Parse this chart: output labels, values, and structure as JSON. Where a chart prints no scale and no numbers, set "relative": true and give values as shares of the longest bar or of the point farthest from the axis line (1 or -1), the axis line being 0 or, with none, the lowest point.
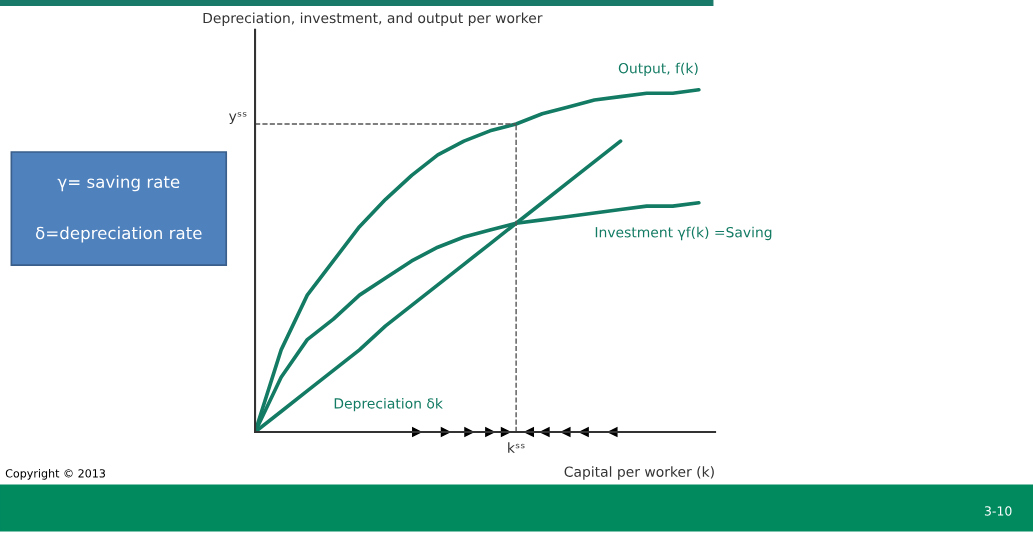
{
  "chart_data": {
    "type": "line",
    "ylabel": "Depreciation, investment, and output per worker",
    "xlabel": "Capital per worker (k)",
    "categories": [
      null,
      null,
      null,
      null,
      null,
      null,
      null,
      null,
      null,
      null,
      null,
      null,
      null,
      null,
      null,
      null,
      null,
      null
    ],
    "relative": true,
    "series": [
      {
        "name": "Output, f(k)",
        "color": "#137b63",
        "values": [
          0,
          0.24,
          0.4,
          0.5,
          0.6,
          0.68,
          0.75,
          0.81,
          0.85,
          0.88,
          0.9,
          0.93,
          0.95,
          0.97,
          0.98,
          0.99,
          0.99,
          1.0
        ]
      },
      {
        "name": "Investment γf(k) =Saving",
        "color": "#137b63",
        "values": [
          0,
          0.16,
          0.27,
          0.33,
          0.4,
          0.45,
          0.5,
          0.54,
          0.57,
          0.59,
          0.61,
          0.62,
          0.63,
          0.64,
          0.65,
          0.66,
          0.66,
          0.67
        ]
      },
      {
        "name": "Depreciation δk",
        "color": "#137b63",
        "values": [
          0,
          0.06,
          0.12,
          0.18,
          0.24,
          0.31,
          0.37,
          0.43,
          0.49,
          0.55,
          0.61,
          0.67,
          0.73,
          0.79,
          0.85,
          null,
          null,
          null
        ]
      }
    ],
    "ref_lines": [
      {
        "axis": "y",
        "value": 0.9,
        "label": "yˢˢ",
        "line_style": "dashed",
        "color": "#555555"
      }
    ],
    "annotations": [
      "γ= saving rate",
      "δ=depreciation rate",
      "Copyright © 2013",
      "3-10",
      "kˢˢ"
    ],
    "marker": "none",
    "line_style": "solid"
  }
}
